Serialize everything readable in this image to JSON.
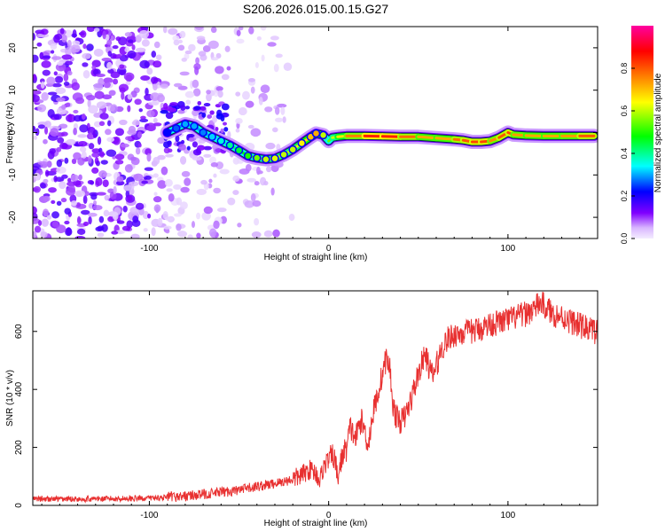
{
  "title": "S206.2026.015.00.15.G27",
  "chart_data": [
    {
      "type": "heatmap",
      "name": "spectrogram",
      "xlabel": "Height of straight line (km)",
      "ylabel": "Frequency (Hz)",
      "xlim": [
        -165,
        150
      ],
      "ylim": [
        -25,
        25
      ],
      "xticks": [
        -100,
        0,
        100
      ],
      "yticks": [
        -20,
        -10,
        0,
        10,
        20
      ],
      "colorbar": {
        "label": "Normalized spectral amplitude",
        "range": [
          0,
          1
        ],
        "ticks": [
          0.0,
          0.2,
          0.4,
          0.6,
          0.8
        ],
        "colors": [
          "#f2e6ff",
          "#8000ff",
          "#0000ff",
          "#00ffff",
          "#00ff00",
          "#ffff00",
          "#ff8000",
          "#ff0000",
          "#ff00a0"
        ]
      },
      "ridge": {
        "x": [
          -90,
          -85,
          -80,
          -75,
          -70,
          -65,
          -60,
          -55,
          -50,
          -45,
          -40,
          -35,
          -30,
          -25,
          -20,
          -15,
          -10,
          -7,
          -3,
          0,
          2,
          5,
          10,
          20,
          30,
          40,
          50,
          60,
          70,
          75,
          80,
          85,
          90,
          95,
          100,
          103,
          110,
          120,
          130,
          140,
          148
        ],
        "frequency": [
          0,
          1,
          2,
          1.5,
          0,
          -1,
          -2,
          -3,
          -4.2,
          -5.5,
          -6,
          -6.3,
          -6.1,
          -5.2,
          -4,
          -2.5,
          -1,
          -0.2,
          -0.6,
          -2,
          -1.2,
          -1,
          -0.8,
          -0.8,
          -0.9,
          -1,
          -1,
          -1.3,
          -1.6,
          -1.8,
          -2.2,
          -2.2,
          -2,
          -1.2,
          0,
          -0.5,
          -0.7,
          -0.8,
          -0.8,
          -0.8,
          -0.8
        ],
        "amplitude": [
          0.22,
          0.26,
          0.3,
          0.3,
          0.28,
          0.32,
          0.36,
          0.4,
          0.45,
          0.5,
          0.55,
          0.6,
          0.62,
          0.6,
          0.6,
          0.65,
          0.7,
          0.72,
          0.6,
          0.5,
          0.58,
          0.62,
          0.7,
          0.82,
          0.88,
          0.82,
          0.74,
          0.7,
          0.74,
          0.82,
          0.78,
          0.85,
          0.78,
          0.72,
          0.88,
          0.75,
          0.72,
          0.72,
          0.72,
          0.75,
          0.85
        ]
      }
    },
    {
      "type": "line",
      "name": "snr",
      "xlabel": "Height of straight line (km)",
      "ylabel": "SNR (10 * v/v)",
      "xlim": [
        -165,
        150
      ],
      "ylim": [
        0,
        740
      ],
      "xticks": [
        -100,
        0,
        100
      ],
      "yticks": [
        0,
        200,
        400,
        600
      ],
      "color": "#e83030",
      "series": [
        {
          "name": "SNR",
          "x": [
            -165,
            -140,
            -120,
            -100,
            -90,
            -80,
            -70,
            -60,
            -50,
            -40,
            -30,
            -20,
            -15,
            -10,
            -7,
            -5,
            -3,
            0,
            3,
            5,
            8,
            10,
            12,
            15,
            18,
            20,
            22,
            25,
            28,
            30,
            32,
            34,
            36,
            38,
            40,
            42,
            45,
            48,
            50,
            52,
            54,
            56,
            58,
            60,
            63,
            66,
            70,
            75,
            80,
            85,
            90,
            95,
            100,
            105,
            110,
            115,
            118,
            120,
            125,
            130,
            135,
            140,
            145,
            150
          ],
          "y": [
            22,
            22,
            23,
            25,
            28,
            32,
            38,
            45,
            52,
            65,
            75,
            90,
            105,
            125,
            110,
            85,
            130,
            160,
            170,
            95,
            180,
            195,
            270,
            230,
            295,
            260,
            210,
            325,
            400,
            455,
            505,
            480,
            340,
            300,
            290,
            300,
            345,
            410,
            455,
            490,
            520,
            475,
            445,
            480,
            540,
            570,
            590,
            595,
            600,
            610,
            625,
            630,
            640,
            650,
            660,
            680,
            700,
            690,
            660,
            650,
            635,
            620,
            610,
            595
          ]
        }
      ]
    }
  ]
}
